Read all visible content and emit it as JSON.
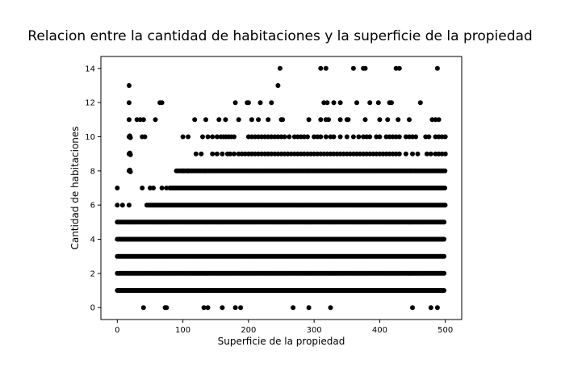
{
  "chart_data": {
    "type": "scatter",
    "title": "Relacion entre la cantidad de habitaciones y la superficie de la propiedad",
    "xlabel": "Superficie de la propiedad",
    "ylabel": "Cantidad de habitaciones",
    "xlim": [
      -25,
      525
    ],
    "ylim": [
      -0.7,
      14.7
    ],
    "xticks": [
      0,
      100,
      200,
      300,
      400,
      500
    ],
    "yticks": [
      0,
      2,
      4,
      6,
      8,
      10,
      12,
      14
    ],
    "grid": false,
    "marker_color": "#000000",
    "bands": [
      {
        "y": 1,
        "x_start": 0,
        "x_end": 500
      },
      {
        "y": 2,
        "x_start": 0,
        "x_end": 500
      },
      {
        "y": 3,
        "x_start": 0,
        "x_end": 500
      },
      {
        "y": 4,
        "x_start": 0,
        "x_end": 500
      },
      {
        "y": 5,
        "x_start": 0,
        "x_end": 500
      },
      {
        "y": 6,
        "x_start": 45,
        "x_end": 500
      },
      {
        "y": 7,
        "x_start": 80,
        "x_end": 500
      },
      {
        "y": 8,
        "x_start": 90,
        "x_end": 500
      }
    ],
    "points": [
      {
        "x": 0,
        "y": 7
      },
      {
        "x": 0,
        "y": 6
      },
      {
        "x": 8,
        "y": 6
      },
      {
        "x": 18,
        "y": 6
      },
      {
        "x": 38,
        "y": 7
      },
      {
        "x": 50,
        "y": 7
      },
      {
        "x": 55,
        "y": 7
      },
      {
        "x": 68,
        "y": 7
      },
      {
        "x": 75,
        "y": 7
      },
      {
        "x": 18,
        "y": 8
      },
      {
        "x": 19,
        "y": 8.05
      },
      {
        "x": 20,
        "y": 7.95
      },
      {
        "x": 100,
        "y": 8
      },
      {
        "x": 108,
        "y": 8
      },
      {
        "x": 18,
        "y": 9
      },
      {
        "x": 19,
        "y": 9.05
      },
      {
        "x": 20,
        "y": 8.95
      },
      {
        "x": 120,
        "y": 9
      },
      {
        "x": 128,
        "y": 9
      },
      {
        "x": 145,
        "y": 9
      },
      {
        "x": 152,
        "y": 9
      },
      {
        "x": 160,
        "y": 9
      },
      {
        "x": 168,
        "y": 9
      },
      {
        "x": 172,
        "y": 9
      },
      {
        "x": 178,
        "y": 9
      },
      {
        "x": 185,
        "y": 9
      },
      {
        "x": 190,
        "y": 9
      },
      {
        "x": 195,
        "y": 9
      },
      {
        "x": 200,
        "y": 9
      },
      {
        "x": 205,
        "y": 9
      },
      {
        "x": 210,
        "y": 9
      },
      {
        "x": 215,
        "y": 9
      },
      {
        "x": 220,
        "y": 9
      },
      {
        "x": 225,
        "y": 9
      },
      {
        "x": 230,
        "y": 9
      },
      {
        "x": 235,
        "y": 9
      },
      {
        "x": 240,
        "y": 9
      },
      {
        "x": 245,
        "y": 9
      },
      {
        "x": 250,
        "y": 9
      },
      {
        "x": 255,
        "y": 9
      },
      {
        "x": 260,
        "y": 9
      },
      {
        "x": 265,
        "y": 9
      },
      {
        "x": 270,
        "y": 9
      },
      {
        "x": 275,
        "y": 9
      },
      {
        "x": 280,
        "y": 9
      },
      {
        "x": 285,
        "y": 9
      },
      {
        "x": 290,
        "y": 9
      },
      {
        "x": 295,
        "y": 9
      },
      {
        "x": 300,
        "y": 9
      },
      {
        "x": 305,
        "y": 9
      },
      {
        "x": 310,
        "y": 9
      },
      {
        "x": 315,
        "y": 9
      },
      {
        "x": 320,
        "y": 9
      },
      {
        "x": 325,
        "y": 9
      },
      {
        "x": 330,
        "y": 9
      },
      {
        "x": 335,
        "y": 9
      },
      {
        "x": 340,
        "y": 9
      },
      {
        "x": 345,
        "y": 9
      },
      {
        "x": 350,
        "y": 9
      },
      {
        "x": 355,
        "y": 9
      },
      {
        "x": 360,
        "y": 9
      },
      {
        "x": 365,
        "y": 9
      },
      {
        "x": 370,
        "y": 9
      },
      {
        "x": 375,
        "y": 9
      },
      {
        "x": 380,
        "y": 9
      },
      {
        "x": 385,
        "y": 9
      },
      {
        "x": 390,
        "y": 9
      },
      {
        "x": 395,
        "y": 9
      },
      {
        "x": 400,
        "y": 9
      },
      {
        "x": 405,
        "y": 9
      },
      {
        "x": 410,
        "y": 9
      },
      {
        "x": 415,
        "y": 9
      },
      {
        "x": 420,
        "y": 9
      },
      {
        "x": 425,
        "y": 9
      },
      {
        "x": 430,
        "y": 9
      },
      {
        "x": 440,
        "y": 9
      },
      {
        "x": 450,
        "y": 9
      },
      {
        "x": 458,
        "y": 9
      },
      {
        "x": 472,
        "y": 9
      },
      {
        "x": 478,
        "y": 9
      },
      {
        "x": 485,
        "y": 9
      },
      {
        "x": 490,
        "y": 9
      },
      {
        "x": 495,
        "y": 9
      },
      {
        "x": 500,
        "y": 9
      },
      {
        "x": 18,
        "y": 10
      },
      {
        "x": 19,
        "y": 10.05
      },
      {
        "x": 20,
        "y": 9.95
      },
      {
        "x": 38,
        "y": 10
      },
      {
        "x": 42,
        "y": 10
      },
      {
        "x": 100,
        "y": 10
      },
      {
        "x": 108,
        "y": 10
      },
      {
        "x": 130,
        "y": 10
      },
      {
        "x": 138,
        "y": 10
      },
      {
        "x": 145,
        "y": 10
      },
      {
        "x": 152,
        "y": 10
      },
      {
        "x": 158,
        "y": 10
      },
      {
        "x": 162,
        "y": 10
      },
      {
        "x": 166,
        "y": 10
      },
      {
        "x": 170,
        "y": 10
      },
      {
        "x": 174,
        "y": 10
      },
      {
        "x": 178,
        "y": 10
      },
      {
        "x": 200,
        "y": 10
      },
      {
        "x": 205,
        "y": 10
      },
      {
        "x": 210,
        "y": 10
      },
      {
        "x": 215,
        "y": 10
      },
      {
        "x": 220,
        "y": 10
      },
      {
        "x": 225,
        "y": 10
      },
      {
        "x": 230,
        "y": 10
      },
      {
        "x": 235,
        "y": 10
      },
      {
        "x": 240,
        "y": 10
      },
      {
        "x": 245,
        "y": 10
      },
      {
        "x": 250,
        "y": 10
      },
      {
        "x": 255,
        "y": 10
      },
      {
        "x": 262,
        "y": 10
      },
      {
        "x": 270,
        "y": 10
      },
      {
        "x": 275,
        "y": 10
      },
      {
        "x": 280,
        "y": 10
      },
      {
        "x": 285,
        "y": 10
      },
      {
        "x": 290,
        "y": 10
      },
      {
        "x": 300,
        "y": 10
      },
      {
        "x": 305,
        "y": 10
      },
      {
        "x": 310,
        "y": 10
      },
      {
        "x": 318,
        "y": 10
      },
      {
        "x": 325,
        "y": 10
      },
      {
        "x": 330,
        "y": 10
      },
      {
        "x": 340,
        "y": 10
      },
      {
        "x": 350,
        "y": 10
      },
      {
        "x": 360,
        "y": 10
      },
      {
        "x": 368,
        "y": 10
      },
      {
        "x": 375,
        "y": 10
      },
      {
        "x": 380,
        "y": 10
      },
      {
        "x": 385,
        "y": 10
      },
      {
        "x": 395,
        "y": 10
      },
      {
        "x": 400,
        "y": 10
      },
      {
        "x": 410,
        "y": 10
      },
      {
        "x": 415,
        "y": 10
      },
      {
        "x": 420,
        "y": 10
      },
      {
        "x": 425,
        "y": 10
      },
      {
        "x": 430,
        "y": 10
      },
      {
        "x": 440,
        "y": 10
      },
      {
        "x": 445,
        "y": 10
      },
      {
        "x": 450,
        "y": 10
      },
      {
        "x": 455,
        "y": 10
      },
      {
        "x": 470,
        "y": 10
      },
      {
        "x": 475,
        "y": 10
      },
      {
        "x": 485,
        "y": 10
      },
      {
        "x": 490,
        "y": 10
      },
      {
        "x": 495,
        "y": 10
      },
      {
        "x": 500,
        "y": 10
      },
      {
        "x": 18,
        "y": 11
      },
      {
        "x": 30,
        "y": 11
      },
      {
        "x": 35,
        "y": 11
      },
      {
        "x": 40,
        "y": 11
      },
      {
        "x": 58,
        "y": 11
      },
      {
        "x": 118,
        "y": 11
      },
      {
        "x": 135,
        "y": 11
      },
      {
        "x": 155,
        "y": 11
      },
      {
        "x": 165,
        "y": 11
      },
      {
        "x": 185,
        "y": 11
      },
      {
        "x": 205,
        "y": 11
      },
      {
        "x": 215,
        "y": 11
      },
      {
        "x": 230,
        "y": 11
      },
      {
        "x": 250,
        "y": 11
      },
      {
        "x": 252,
        "y": 11
      },
      {
        "x": 292,
        "y": 11
      },
      {
        "x": 310,
        "y": 11
      },
      {
        "x": 318,
        "y": 11
      },
      {
        "x": 322,
        "y": 11
      },
      {
        "x": 340,
        "y": 11
      },
      {
        "x": 350,
        "y": 11
      },
      {
        "x": 352,
        "y": 11
      },
      {
        "x": 378,
        "y": 11
      },
      {
        "x": 400,
        "y": 11
      },
      {
        "x": 412,
        "y": 11
      },
      {
        "x": 428,
        "y": 11
      },
      {
        "x": 445,
        "y": 11
      },
      {
        "x": 480,
        "y": 11
      },
      {
        "x": 485,
        "y": 11
      },
      {
        "x": 490,
        "y": 11
      },
      {
        "x": 18,
        "y": 12
      },
      {
        "x": 65,
        "y": 12
      },
      {
        "x": 68,
        "y": 12
      },
      {
        "x": 180,
        "y": 12
      },
      {
        "x": 198,
        "y": 12
      },
      {
        "x": 200,
        "y": 12
      },
      {
        "x": 218,
        "y": 12
      },
      {
        "x": 235,
        "y": 12
      },
      {
        "x": 315,
        "y": 12
      },
      {
        "x": 320,
        "y": 12
      },
      {
        "x": 330,
        "y": 12
      },
      {
        "x": 340,
        "y": 12
      },
      {
        "x": 365,
        "y": 12
      },
      {
        "x": 385,
        "y": 12
      },
      {
        "x": 398,
        "y": 12
      },
      {
        "x": 415,
        "y": 12
      },
      {
        "x": 418,
        "y": 12
      },
      {
        "x": 462,
        "y": 12
      },
      {
        "x": 18,
        "y": 13
      },
      {
        "x": 245,
        "y": 13
      },
      {
        "x": 248,
        "y": 14
      },
      {
        "x": 310,
        "y": 14
      },
      {
        "x": 318,
        "y": 14
      },
      {
        "x": 360,
        "y": 14
      },
      {
        "x": 375,
        "y": 14
      },
      {
        "x": 378,
        "y": 14
      },
      {
        "x": 425,
        "y": 14
      },
      {
        "x": 430,
        "y": 14
      },
      {
        "x": 488,
        "y": 14
      },
      {
        "x": 40,
        "y": 0
      },
      {
        "x": 73,
        "y": 0
      },
      {
        "x": 75,
        "y": 0
      },
      {
        "x": 132,
        "y": 0
      },
      {
        "x": 138,
        "y": 0
      },
      {
        "x": 160,
        "y": 0
      },
      {
        "x": 180,
        "y": 0
      },
      {
        "x": 188,
        "y": 0
      },
      {
        "x": 268,
        "y": 0
      },
      {
        "x": 292,
        "y": 0
      },
      {
        "x": 325,
        "y": 0
      },
      {
        "x": 450,
        "y": 0
      },
      {
        "x": 478,
        "y": 0
      },
      {
        "x": 488,
        "y": 0
      }
    ]
  }
}
